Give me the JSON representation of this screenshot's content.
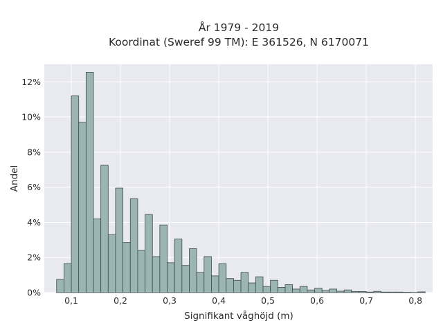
{
  "chart_data": {
    "type": "bar",
    "title": "År 1979 - 2019",
    "subtitle": "Koordinat (Sweref 99 TM): E 361526, N 6170071",
    "xlabel": "Signifikant våghöjd (m)",
    "ylabel": "Andel",
    "xlim": [
      0.045,
      0.835
    ],
    "ylim": [
      0,
      13.0
    ],
    "xticks": [
      0.1,
      0.2,
      0.3,
      0.4,
      0.5,
      0.6,
      0.7,
      0.8
    ],
    "xtick_labels": [
      "0,1",
      "0,2",
      "0,3",
      "0,4",
      "0,5",
      "0,6",
      "0,7",
      "0,8"
    ],
    "yticks": [
      0,
      2,
      4,
      6,
      8,
      10,
      12
    ],
    "ytick_labels": [
      "0%",
      "2%",
      "4%",
      "6%",
      "8%",
      "10%",
      "12%"
    ],
    "bin_width": 0.015,
    "bin_starts": [
      0.07,
      0.085,
      0.1,
      0.115,
      0.13,
      0.145,
      0.16,
      0.175,
      0.19,
      0.205,
      0.22,
      0.235,
      0.25,
      0.265,
      0.28,
      0.295,
      0.31,
      0.325,
      0.34,
      0.355,
      0.37,
      0.385,
      0.4,
      0.415,
      0.43,
      0.445,
      0.46,
      0.475,
      0.49,
      0.505,
      0.52,
      0.535,
      0.55,
      0.565,
      0.58,
      0.595,
      0.61,
      0.625,
      0.64,
      0.655,
      0.67,
      0.685,
      0.7,
      0.715,
      0.73,
      0.745,
      0.76,
      0.775,
      0.79,
      0.805
    ],
    "values": [
      0.75,
      1.65,
      11.2,
      9.7,
      12.55,
      4.2,
      7.25,
      3.3,
      5.95,
      2.85,
      5.35,
      2.4,
      4.45,
      2.05,
      3.85,
      1.7,
      3.05,
      1.55,
      2.5,
      1.15,
      2.05,
      0.95,
      1.65,
      0.8,
      0.7,
      1.15,
      0.55,
      0.9,
      0.35,
      0.7,
      0.3,
      0.45,
      0.2,
      0.35,
      0.15,
      0.25,
      0.12,
      0.2,
      0.08,
      0.15,
      0.06,
      0.06,
      0.03,
      0.07,
      0.03,
      0.03,
      0.03,
      0.02,
      0.01,
      0.04
    ],
    "bar_color": "#9ab5b4",
    "bar_edge_color": "#3d4a48",
    "background_color": "#e9e9f0",
    "grid": true
  }
}
